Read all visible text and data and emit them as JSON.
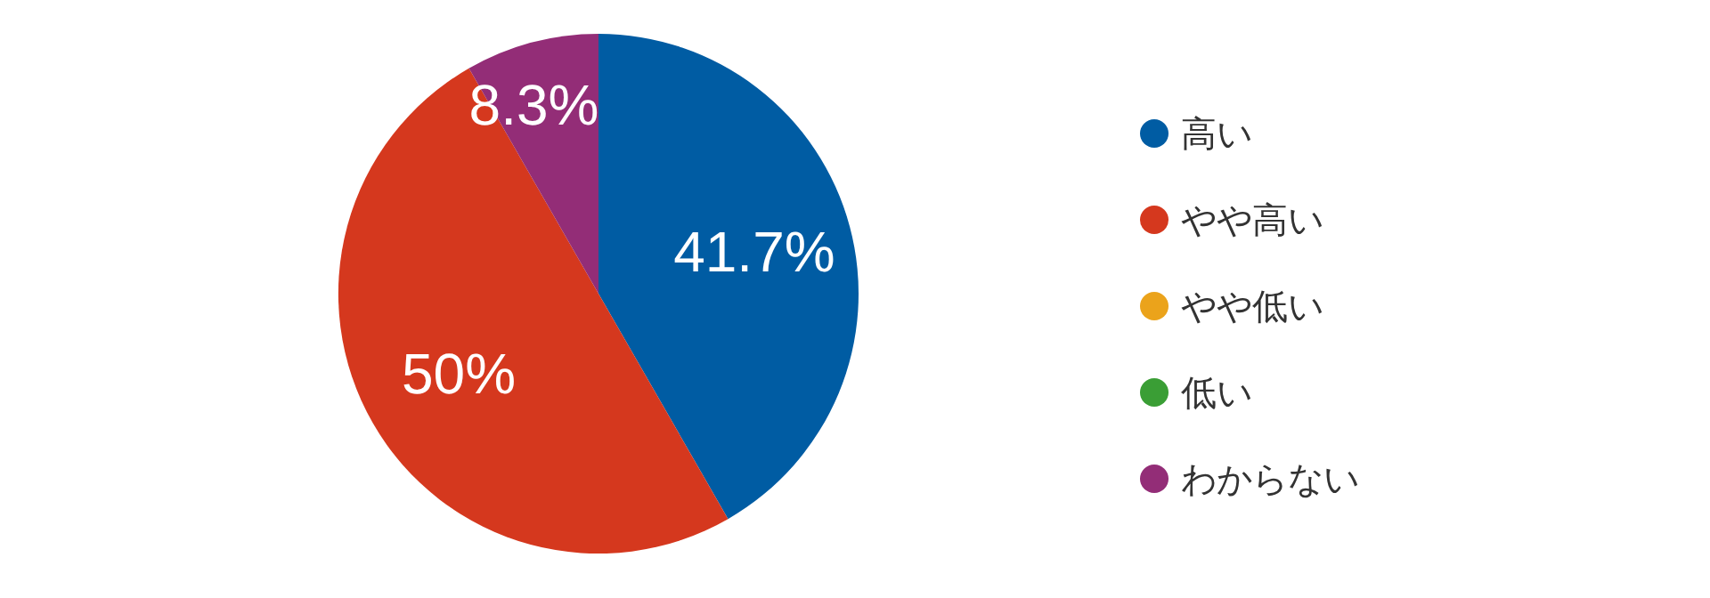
{
  "chart_data": {
    "type": "pie",
    "categories": [
      "高い",
      "やや高い",
      "やや低い",
      "低い",
      "わからない"
    ],
    "values": [
      41.7,
      50,
      0,
      0,
      8.3
    ],
    "colors": [
      "#005ca3",
      "#d5381e",
      "#eba31b",
      "#3a9e35",
      "#932d77"
    ],
    "value_labels": [
      "41.7%",
      "50%",
      null,
      null,
      "8.3%"
    ],
    "legend": "right"
  }
}
